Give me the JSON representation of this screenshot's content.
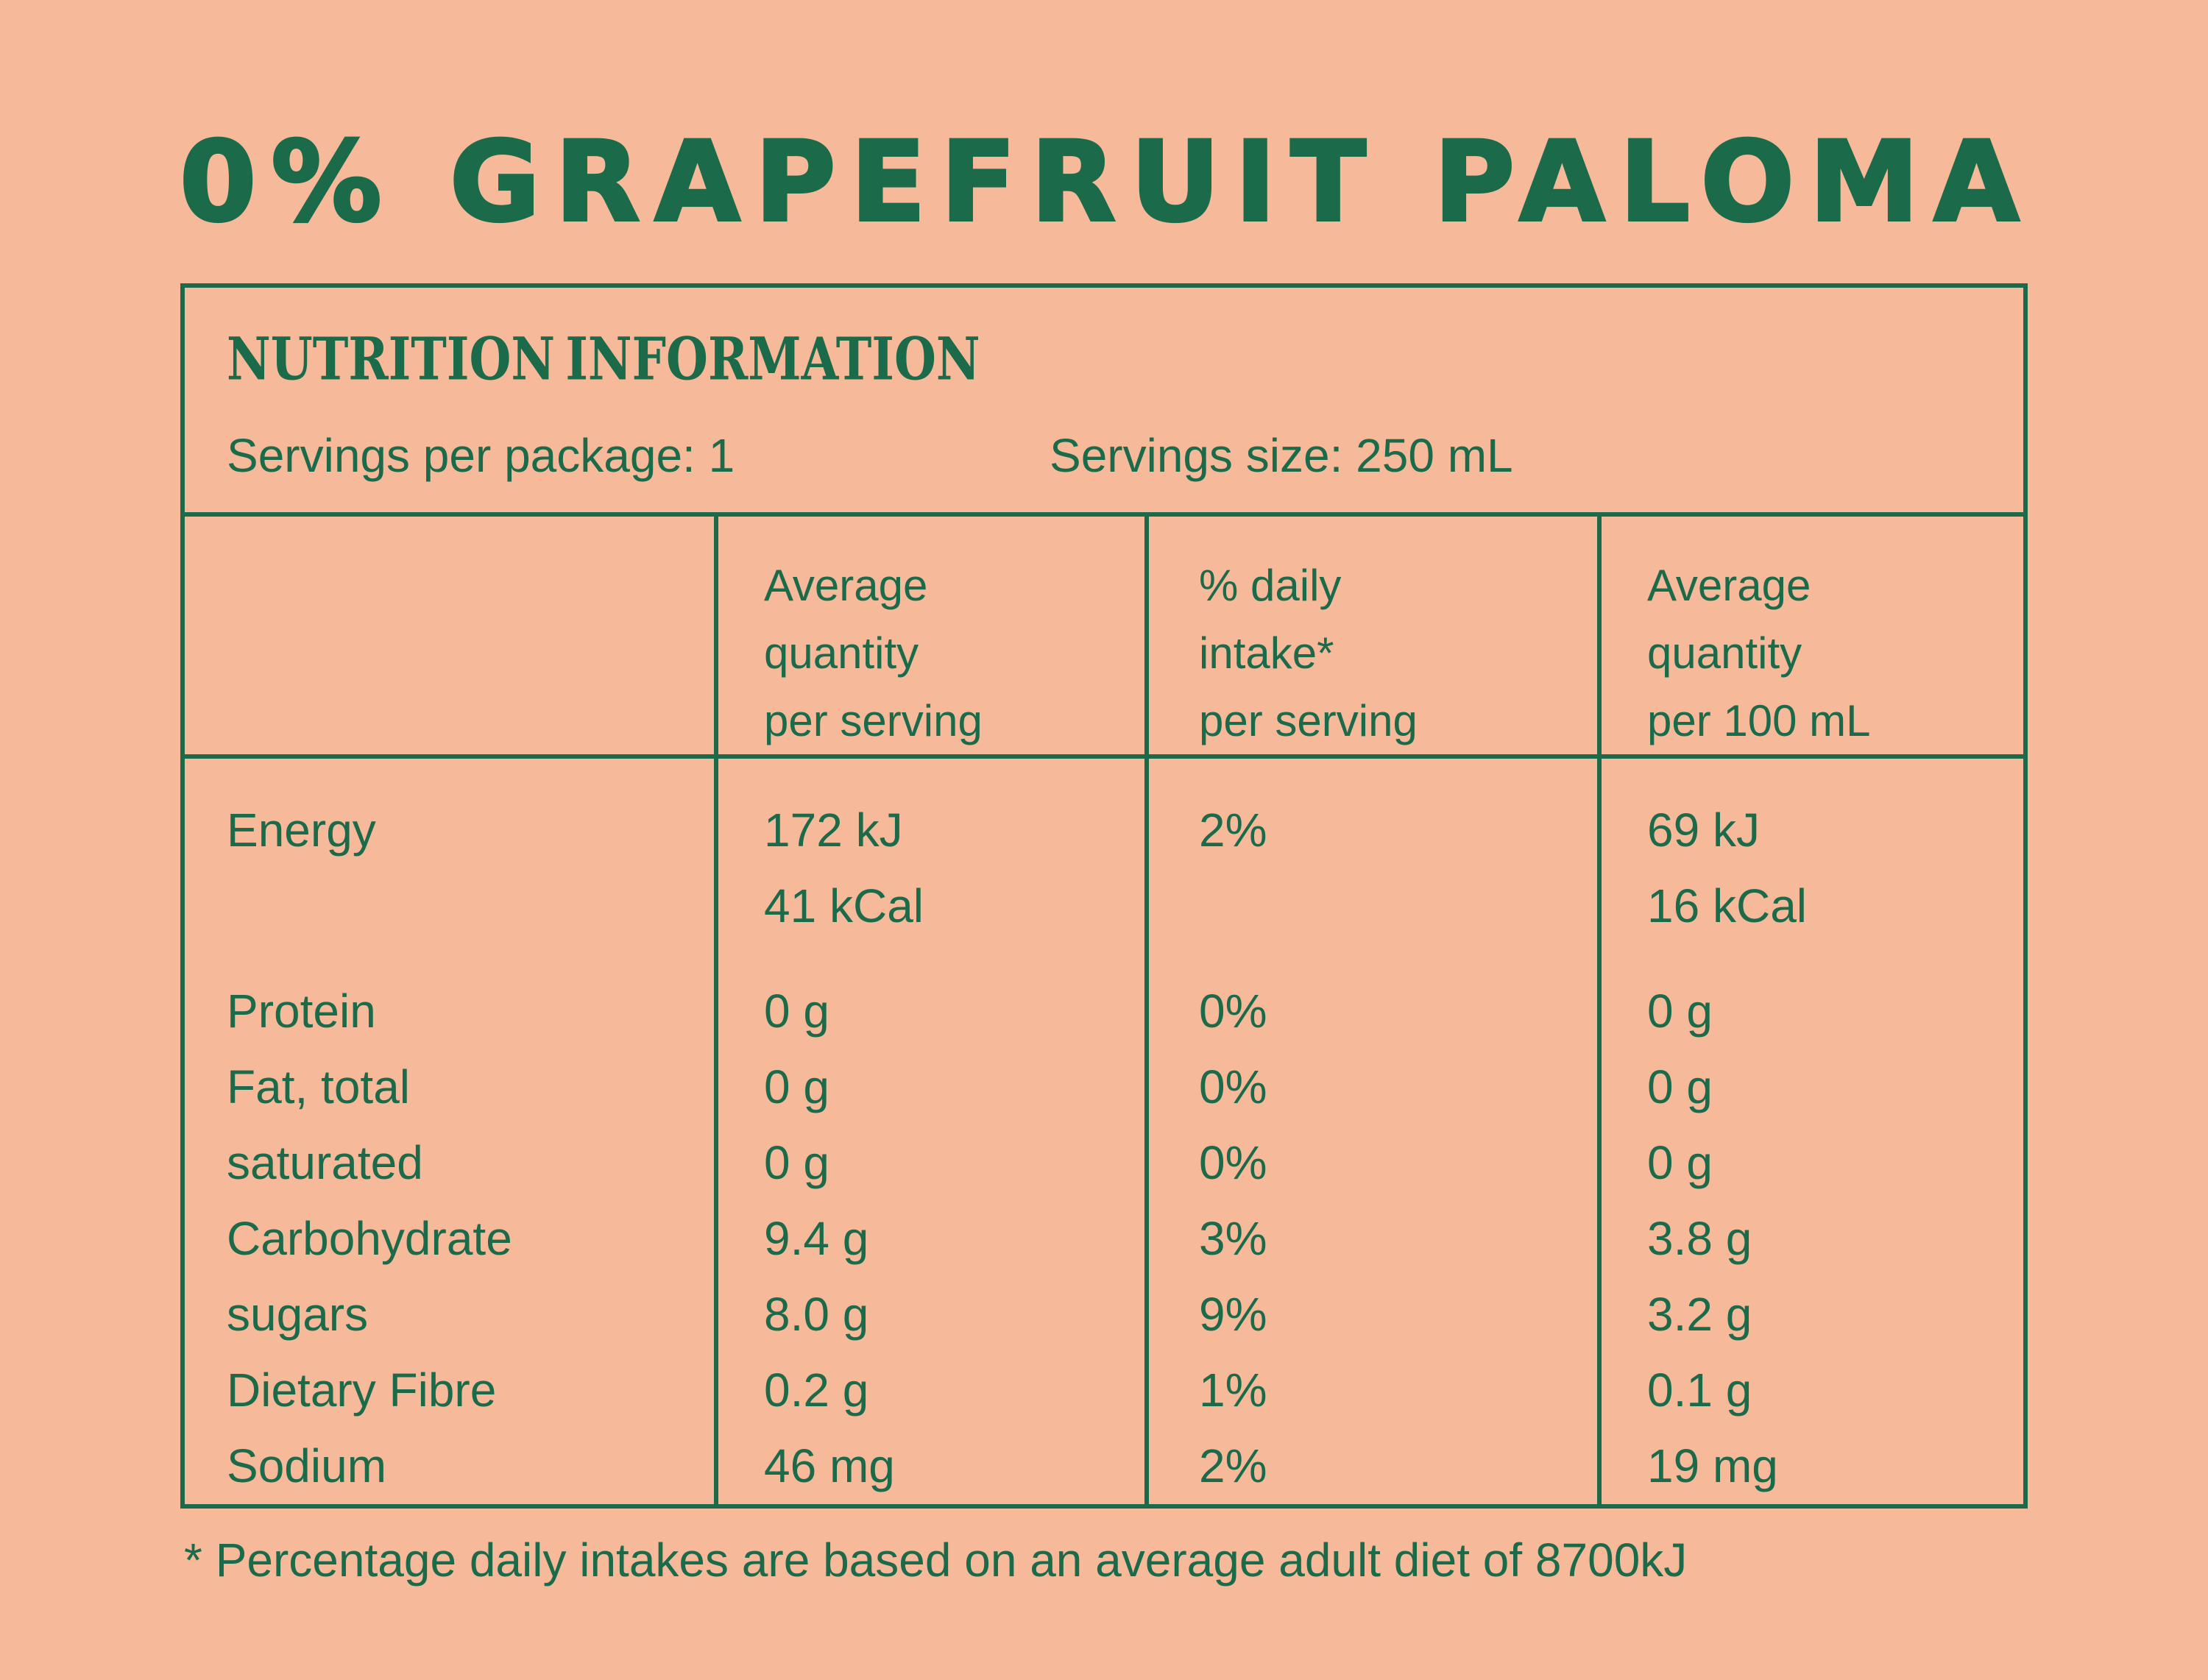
{
  "page": {
    "background_color": "#f6ba9b",
    "accent_color": "#1b6a4a"
  },
  "title": "0% GRAPEFRUIT PALOMA",
  "panel": {
    "heading": "NUTRITION INFORMATION",
    "servings_per_package": "Servings per package: 1",
    "servings_size": "Servings size: 250 mL"
  },
  "table": {
    "columns": {
      "per_serving": "Average\nquantity\nper serving",
      "daily_intake": "% daily\nintake*\nper serving",
      "per_100ml": "Average\nquantity\nper 100 mL"
    },
    "labels": {
      "energy": "Energy",
      "protein": "Protein",
      "fat_total": "Fat, total",
      "saturated": "saturated",
      "carbohydrate": "Carbohydrate",
      "sugars": "sugars",
      "dietary_fibre": "Dietary Fibre",
      "sodium": "Sodium"
    },
    "per_serving": {
      "energy": "172 kJ\n41 kCal",
      "protein": "0 g",
      "fat_total": "0 g",
      "saturated": "0 g",
      "carbohydrate": "9.4 g",
      "sugars": "8.0 g",
      "dietary_fibre": "0.2 g",
      "sodium": "46 mg"
    },
    "daily_intake": {
      "energy": "2%",
      "protein": "0%",
      "fat_total": "0%",
      "saturated": "0%",
      "carbohydrate": "3%",
      "sugars": "9%",
      "dietary_fibre": "1%",
      "sodium": "2%"
    },
    "per_100ml": {
      "energy": "69 kJ\n16 kCal",
      "protein": "0 g",
      "fat_total": "0 g",
      "saturated": "0 g",
      "carbohydrate": "3.8 g",
      "sugars": "3.2 g",
      "dietary_fibre": "0.1 g",
      "sodium": "19 mg"
    }
  },
  "footnote": "* Percentage daily intakes are based on an average adult diet of 8700kJ"
}
